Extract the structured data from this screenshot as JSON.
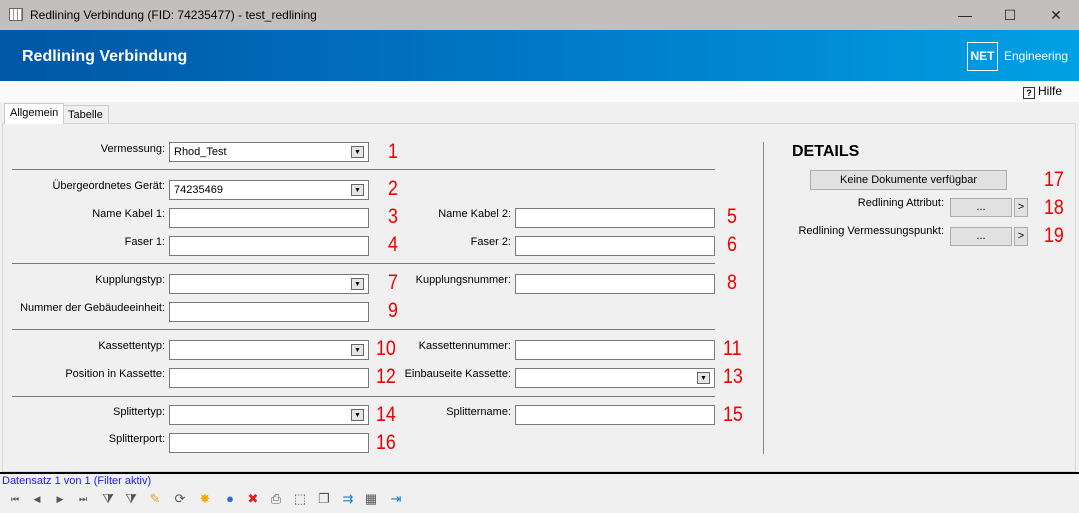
{
  "window": {
    "title": "Redlining Verbindung (FID: 74235477) - test_redlining",
    "minimize": "—",
    "maximize": "☐",
    "close": "✕"
  },
  "banner": {
    "title": "Redlining Verbindung",
    "logo": "NET",
    "brand": "Engineering"
  },
  "help": {
    "icon": "?",
    "label": "Hilfe"
  },
  "tabs": [
    {
      "label": "Allgemein",
      "active": true
    },
    {
      "label": "Tabelle",
      "active": false
    }
  ],
  "form": {
    "vermessung": {
      "label": "Vermessung:",
      "value": "Rhod_Test",
      "num": "1"
    },
    "geraet": {
      "label": "Übergeordnetes Gerät:",
      "value": "74235469",
      "num": "2"
    },
    "kabel1": {
      "label": "Name Kabel 1:",
      "value": "",
      "num": "3"
    },
    "faser1": {
      "label": "Faser 1:",
      "value": "",
      "num": "4"
    },
    "kabel2": {
      "label": "Name Kabel 2:",
      "value": "",
      "num": "5"
    },
    "faser2": {
      "label": "Faser 2:",
      "value": "",
      "num": "6"
    },
    "kupplungstyp": {
      "label": "Kupplungstyp:",
      "value": "",
      "num": "7"
    },
    "kupplungsnummer": {
      "label": "Kupplungsnummer:",
      "value": "",
      "num": "8"
    },
    "gebaeude": {
      "label": "Nummer der Gebäudeeinheit:",
      "value": "",
      "num": "9"
    },
    "kassettentyp": {
      "label": "Kassettentyp:",
      "value": "",
      "num": "10"
    },
    "kassettennummer": {
      "label": "Kassettennummer:",
      "value": "",
      "num": "11"
    },
    "position": {
      "label": "Position in Kassette:",
      "value": "",
      "num": "12"
    },
    "einbauseite": {
      "label": "Einbauseite Kassette:",
      "value": "",
      "num": "13"
    },
    "splittertyp": {
      "label": "Splittertyp:",
      "value": "",
      "num": "14"
    },
    "splittername": {
      "label": "Splittername:",
      "value": "",
      "num": "15"
    },
    "splitterport": {
      "label": "Splitterport:",
      "value": "",
      "num": "16"
    }
  },
  "details": {
    "title": "DETAILS",
    "docs_button": "Keine Dokumente verfügbar",
    "num17": "17",
    "attribut": {
      "label": "Redlining Attribut:",
      "button": "...",
      "go": ">",
      "num": "18"
    },
    "vpunkt": {
      "label": "Redlining Vermessungspunkt:",
      "button": "...",
      "go": ">",
      "num": "19"
    }
  },
  "status": "Datensatz 1 von 1 (Filter aktiv)",
  "toolbar": [
    {
      "name": "first-record-icon",
      "glyph": "⏮"
    },
    {
      "name": "previous-record-icon",
      "glyph": "◀"
    },
    {
      "name": "next-record-icon",
      "glyph": "▶"
    },
    {
      "name": "last-record-icon",
      "glyph": "⏭"
    },
    {
      "name": "add-filter-icon",
      "glyph": "⧩"
    },
    {
      "name": "remove-filter-icon",
      "glyph": "⧩"
    },
    {
      "name": "edit-pencil-icon",
      "glyph": "✎"
    },
    {
      "name": "refresh-icon",
      "glyph": "⟳"
    },
    {
      "name": "new-star-icon",
      "glyph": "✸"
    },
    {
      "name": "globe-refresh-icon",
      "glyph": "●"
    },
    {
      "name": "delete-icon",
      "glyph": "✖"
    },
    {
      "name": "print-icon",
      "glyph": "⎙"
    },
    {
      "name": "select-area-icon",
      "glyph": "⬚"
    },
    {
      "name": "copy-icon",
      "glyph": "❐"
    },
    {
      "name": "move-icon",
      "glyph": "⇉"
    },
    {
      "name": "table-edit-icon",
      "glyph": "▦"
    },
    {
      "name": "exit-icon",
      "glyph": "⇥"
    }
  ]
}
